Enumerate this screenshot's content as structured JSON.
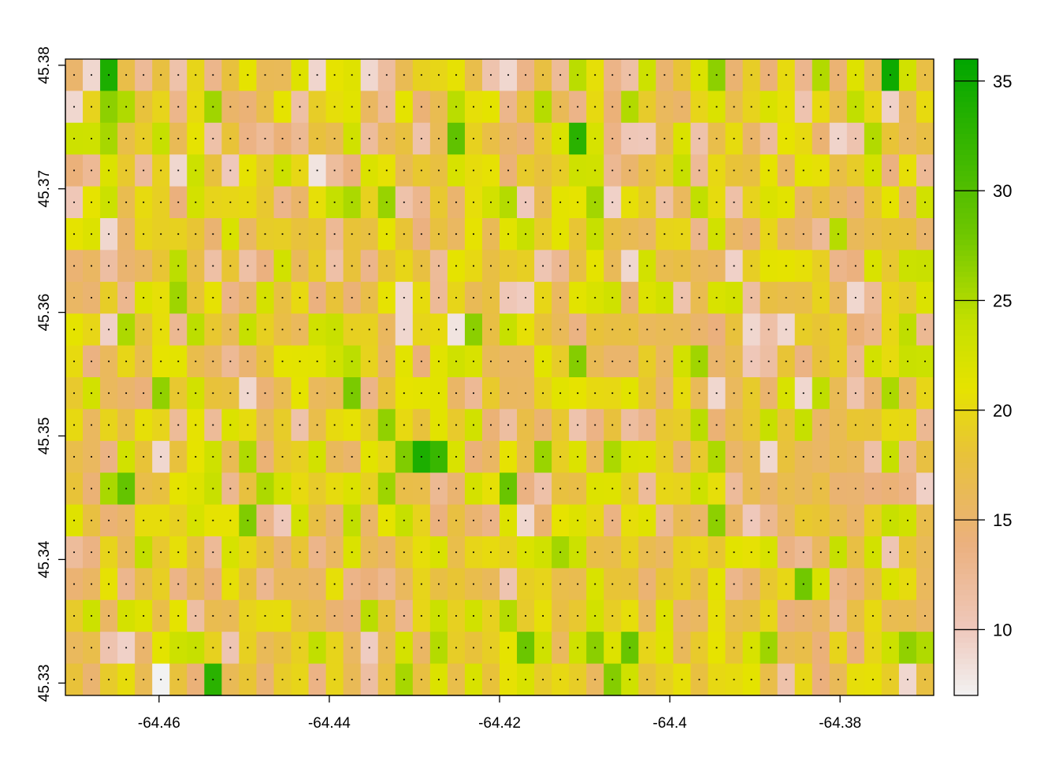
{
  "chart_data": {
    "type": "heatmap",
    "title": "",
    "xlabel": "",
    "ylabel": "",
    "xlim": [
      -64.471,
      -64.369
    ],
    "ylim": [
      45.329,
      45.3805
    ],
    "x_ticks": [
      -64.46,
      -64.44,
      -64.42,
      -64.4,
      -64.38
    ],
    "x_tick_labels": [
      "-64.46",
      "-64.44",
      "-64.42",
      "-64.4",
      "-64.38"
    ],
    "y_ticks": [
      45.33,
      45.34,
      45.35,
      45.36,
      45.37,
      45.38
    ],
    "y_tick_labels": [
      "45.33",
      "45.34",
      "45.35",
      "45.36",
      "45.37",
      "45.38"
    ],
    "grid": {
      "ncols": 50,
      "nrows": 20,
      "x_start": -64.471,
      "x_end": -64.369,
      "y_start": 45.329,
      "y_end": 45.3805
    },
    "cell_centers_marked": true,
    "value_range": [
      7,
      36
    ],
    "values_estimated": true,
    "value_seed": 20240517,
    "value_mode": 18,
    "legend": {
      "position": "right",
      "min": 7,
      "max": 36,
      "ticks": [
        10,
        15,
        20,
        25,
        30,
        35
      ],
      "tick_labels": [
        "10",
        "15",
        "20",
        "25",
        "30",
        "35"
      ]
    },
    "colormap": {
      "name": "terrain-like",
      "stops": [
        {
          "value": 7,
          "color": "#f2f2f2"
        },
        {
          "value": 10,
          "color": "#efc9bd"
        },
        {
          "value": 14,
          "color": "#ebb07d"
        },
        {
          "value": 18,
          "color": "#e8c23a"
        },
        {
          "value": 21,
          "color": "#e6e300"
        },
        {
          "value": 24,
          "color": "#c5e000"
        },
        {
          "value": 28,
          "color": "#6fc700"
        },
        {
          "value": 36,
          "color": "#00a600"
        }
      ]
    },
    "notable_cells": [
      {
        "col": 5,
        "row": 19,
        "value": 7
      },
      {
        "col": 8,
        "row": 19,
        "value": 33
      },
      {
        "col": 22,
        "row": 8,
        "value": 8
      },
      {
        "col": 20,
        "row": 12,
        "value": 34
      },
      {
        "col": 37,
        "row": 10,
        "value": 9
      },
      {
        "col": 47,
        "row": 0,
        "value": 35
      },
      {
        "col": 2,
        "row": 0,
        "value": 34
      },
      {
        "col": 29,
        "row": 2,
        "value": 33
      },
      {
        "col": 14,
        "row": 3,
        "value": 8
      },
      {
        "col": 5,
        "row": 12,
        "value": 9
      },
      {
        "col": 2,
        "row": 5,
        "value": 9
      },
      {
        "col": 21,
        "row": 12,
        "value": 32
      }
    ]
  }
}
